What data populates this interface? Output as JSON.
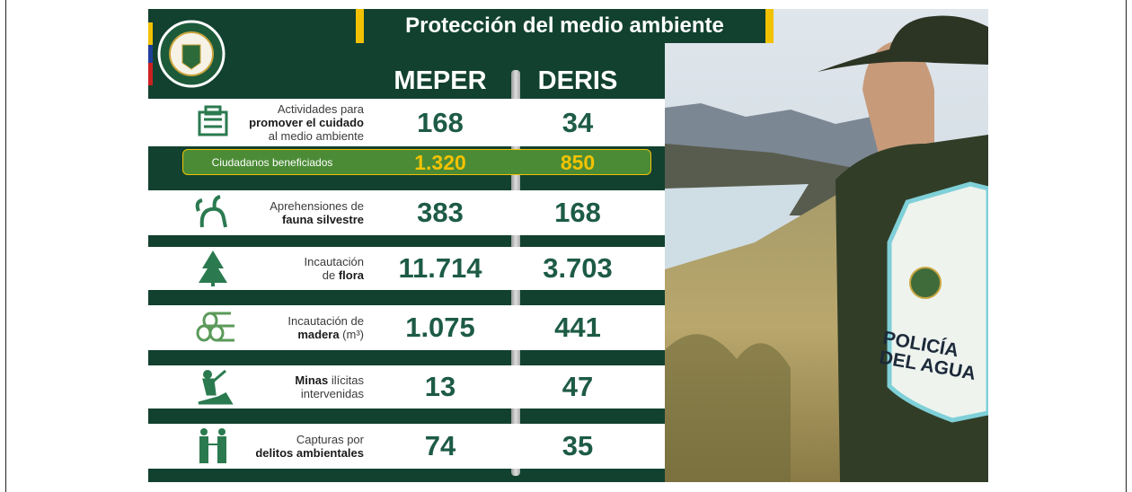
{
  "title": "Protección del medio ambiente",
  "columns": [
    "MEPER",
    "DERIS"
  ],
  "rows": [
    {
      "label": [
        [
          {
            "text": "Actividades para"
          }
        ],
        [
          {
            "text": "promover el cuidado",
            "bold": true
          }
        ],
        [
          {
            "text": "al medio ambiente"
          }
        ]
      ],
      "values": [
        "168",
        "34"
      ]
    },
    {
      "label": [
        [
          {
            "text": "Aprehensiones de"
          }
        ],
        [
          {
            "text": "fauna silvestre",
            "bold": true
          }
        ]
      ],
      "values": [
        "383",
        "168"
      ]
    },
    {
      "label": [
        [
          {
            "text": "Incautación"
          }
        ],
        [
          {
            "text": "de "
          },
          {
            "text": "flora",
            "bold": true
          }
        ]
      ],
      "values": [
        "11.714",
        "3.703"
      ]
    },
    {
      "label": [
        [
          {
            "text": "Incautación de"
          }
        ],
        [
          {
            "text": "madera",
            "bold": true
          },
          {
            "text": " (m³)"
          }
        ]
      ],
      "values": [
        "1.075",
        "441"
      ]
    },
    {
      "label": [
        [
          {
            "text": "Minas",
            "bold": true
          },
          {
            "text": " ilícitas"
          }
        ],
        [
          {
            "text": "intervenidas"
          }
        ]
      ],
      "values": [
        "13",
        "47"
      ]
    },
    {
      "label": [
        [
          {
            "text": "Capturas por"
          }
        ],
        [
          {
            "text": "delitos ambientales",
            "bold": true
          }
        ]
      ],
      "values": [
        "74",
        "35"
      ]
    }
  ],
  "highlight": {
    "label": "Ciudadanos beneficiados",
    "values": [
      "1.320",
      "850"
    ]
  },
  "badge": [
    "POLICÍA",
    "DEL AGUA"
  ]
}
